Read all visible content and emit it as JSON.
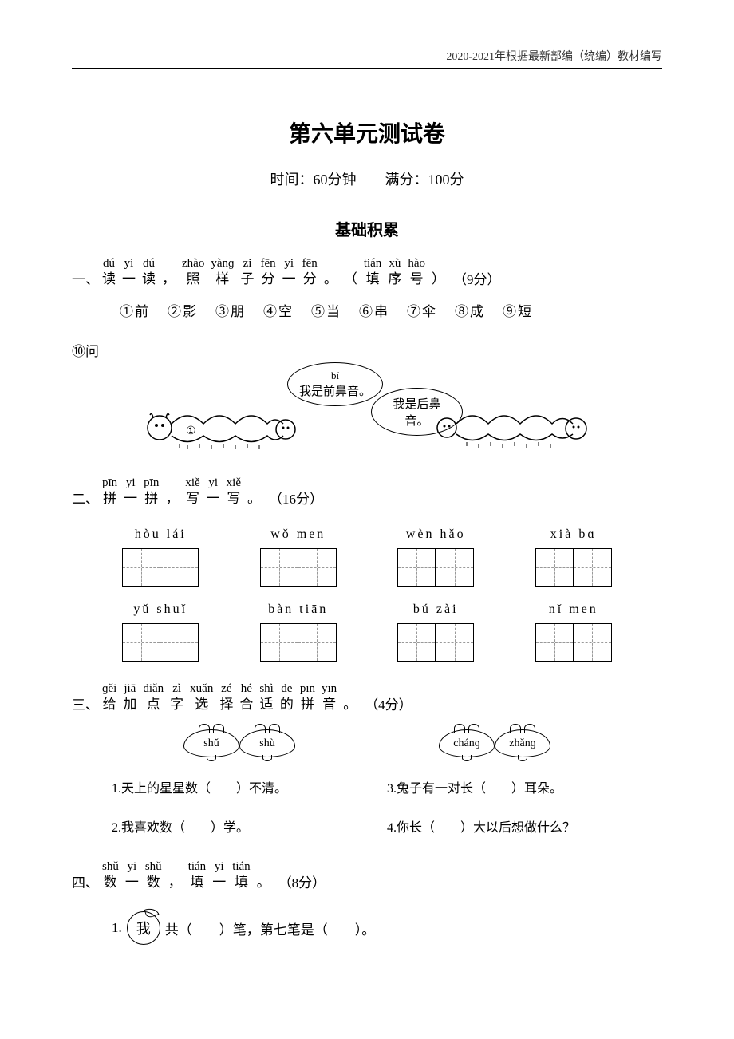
{
  "header_note": "2020-2021年根据最新部编（统编）教材编写",
  "title": "第六单元测试卷",
  "subtitle": "时间：60分钟　　满分：100分",
  "section_heading": "基础积累",
  "q1": {
    "num": "一、",
    "ruby": [
      {
        "p": "dú",
        "h": "读"
      },
      {
        "p": "yi",
        "h": "一"
      },
      {
        "p": "dú",
        "h": "读"
      },
      {
        "p": "",
        "h": "，"
      },
      {
        "p": "zhào",
        "h": "照"
      },
      {
        "p": "yànɡ",
        "h": "样"
      },
      {
        "p": "zi",
        "h": "子"
      },
      {
        "p": "fēn",
        "h": "分"
      },
      {
        "p": "yi",
        "h": "一"
      },
      {
        "p": "fēn",
        "h": "分"
      },
      {
        "p": "",
        "h": "。"
      },
      {
        "p": "",
        "h": "（"
      },
      {
        "p": "tián",
        "h": "填"
      },
      {
        "p": "xù",
        "h": "序"
      },
      {
        "p": "hào",
        "h": "号"
      },
      {
        "p": "",
        "h": "）"
      }
    ],
    "score": "（9分）",
    "options": [
      "①前",
      "②影",
      "③朋",
      "④空",
      "⑤当",
      "⑥串",
      "⑦伞",
      "⑧成",
      "⑨短"
    ],
    "option_wrap": "⑩问",
    "bubble1": "我是前鼻音。",
    "bubble2": "我是后鼻音。",
    "marker": "①"
  },
  "q2": {
    "num": "二、",
    "ruby": [
      {
        "p": "pīn",
        "h": "拼"
      },
      {
        "p": "yi",
        "h": "一"
      },
      {
        "p": "pīn",
        "h": "拼"
      },
      {
        "p": "",
        "h": "，"
      },
      {
        "p": "xiě",
        "h": "写"
      },
      {
        "p": "yi",
        "h": "一"
      },
      {
        "p": "xiě",
        "h": "写"
      },
      {
        "p": "",
        "h": "。"
      }
    ],
    "score": "（16分）",
    "items": [
      "hòu lái",
      "wǒ  men",
      "wèn  hǎo",
      "xià  bɑ",
      "yǔ  shuǐ",
      "bàn  tiān",
      "bú  zài",
      "nǐ  men"
    ]
  },
  "q3": {
    "num": "三、",
    "ruby": [
      {
        "p": "ɡěi",
        "h": "给"
      },
      {
        "p": "jiā",
        "h": "加"
      },
      {
        "p": "diǎn",
        "h": "点"
      },
      {
        "p": "zì",
        "h": "字"
      },
      {
        "p": "xuǎn",
        "h": "选"
      },
      {
        "p": "zé",
        "h": "择"
      },
      {
        "p": "hé",
        "h": "合"
      },
      {
        "p": "shì",
        "h": "适"
      },
      {
        "p": "de",
        "h": "的"
      },
      {
        "p": "pīn",
        "h": "拼"
      },
      {
        "p": "yīn",
        "h": "音"
      },
      {
        "p": "",
        "h": "。"
      }
    ],
    "score": "（4分）",
    "leaves": [
      [
        "shǔ",
        "shù"
      ],
      [
        "chánɡ",
        "zhǎnɡ"
      ]
    ],
    "sentences": [
      "1.天上的星星数（　　）不清。",
      "3.兔子有一对长（　　）耳朵。",
      "2.我喜欢数（　　）学。",
      "4.你长（　　）大以后想做什么？"
    ]
  },
  "q4": {
    "num": "四、",
    "ruby": [
      {
        "p": "shǔ",
        "h": "数"
      },
      {
        "p": "yi",
        "h": "一"
      },
      {
        "p": "shǔ",
        "h": "数"
      },
      {
        "p": "",
        "h": "，"
      },
      {
        "p": "tián",
        "h": "填"
      },
      {
        "p": "yi",
        "h": "一"
      },
      {
        "p": "tián",
        "h": "填"
      },
      {
        "p": "",
        "h": "。"
      }
    ],
    "score": "（8分）",
    "item1_prefix": "1.",
    "item1_char": "我",
    "item1_text": "共（　　）笔，第七笔是（　　）。"
  }
}
